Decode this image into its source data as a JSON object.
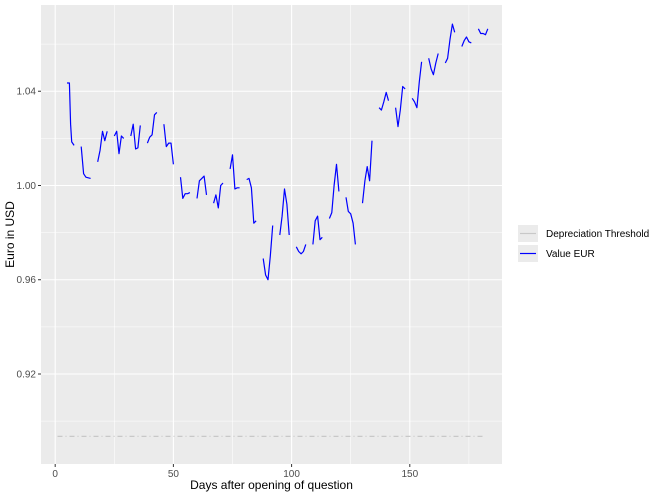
{
  "chart_data": {
    "type": "line",
    "title": "",
    "xlabel": "Days after opening of question",
    "ylabel": "Euro in USD",
    "xlim": [
      -6,
      189
    ],
    "ylim": [
      0.8818,
      1.0766
    ],
    "x_ticks": [
      0,
      50,
      100,
      150
    ],
    "y_ticks": [
      0.92,
      0.96,
      1.0,
      1.04
    ],
    "x_tick_labels": [
      "0",
      "50",
      "100",
      "150"
    ],
    "y_tick_labels": [
      "0.92",
      "0.96",
      "1.00",
      "1.04"
    ],
    "grid": true,
    "legend_position": "right",
    "legend": [
      "Depreciation Threshold",
      "Value EUR"
    ],
    "colors": {
      "panel": "#ebebeb",
      "grid": "#ffffff",
      "value": "#0000ff",
      "threshold": "#c8c8c8"
    },
    "series": [
      {
        "name": "Depreciation Threshold",
        "style": "dashed",
        "color": "#c8c8c8",
        "x": [
          1,
          182
        ],
        "y": [
          0.8935,
          0.8935
        ]
      },
      {
        "name": "Value EUR",
        "style": "solid",
        "color": "#0000ff",
        "segments": [
          [
            [
              5,
              1.0435
            ],
            [
              6,
              1.0435
            ],
            [
              6.5,
              1.026
            ],
            [
              7,
              1.0185
            ],
            [
              8,
              1.017
            ]
          ],
          [
            [
              11,
              1.0165
            ],
            [
              12,
              1.005
            ],
            [
              13,
              1.0035
            ],
            [
              15,
              1.003
            ]
          ],
          [
            [
              18,
              1.01
            ],
            [
              19,
              1.015
            ],
            [
              20,
              1.023
            ],
            [
              21,
              1.019
            ],
            [
              22,
              1.023
            ]
          ],
          [
            [
              25,
              1.021
            ],
            [
              26,
              1.023
            ],
            [
              27,
              1.0135
            ],
            [
              28,
              1.021
            ],
            [
              29,
              1.02
            ]
          ],
          [
            [
              32,
              1.021
            ],
            [
              33,
              1.026
            ],
            [
              34,
              1.0155
            ],
            [
              35,
              1.016
            ],
            [
              36,
              1.0255
            ]
          ],
          [
            [
              39,
              1.018
            ],
            [
              40,
              1.0205
            ],
            [
              41,
              1.0215
            ],
            [
              42,
              1.03
            ],
            [
              43,
              1.031
            ]
          ],
          [
            [
              46,
              1.026
            ],
            [
              47,
              1.0165
            ],
            [
              48,
              1.018
            ],
            [
              49,
              1.018
            ],
            [
              50,
              1.009
            ]
          ],
          [
            [
              53,
              1.0035
            ],
            [
              54,
              0.9945
            ],
            [
              55,
              0.9965
            ],
            [
              56,
              0.9965
            ],
            [
              57,
              0.997
            ]
          ],
          [
            [
              60,
              0.9945
            ],
            [
              61,
              1.002
            ],
            [
              62,
              1.003
            ],
            [
              63,
              1.004
            ],
            [
              64,
              0.996
            ]
          ],
          [
            [
              67,
              0.9925
            ],
            [
              68,
              0.996
            ],
            [
              69,
              0.9905
            ],
            [
              70,
              1.0
            ],
            [
              71,
              1.001
            ]
          ],
          [
            [
              74,
              1.007
            ],
            [
              75,
              1.013
            ],
            [
              76,
              0.9985
            ],
            [
              77,
              0.999
            ],
            [
              78,
              0.999
            ]
          ],
          [
            [
              81,
              1.0025
            ],
            [
              82,
              1.003
            ],
            [
              83,
              0.999
            ],
            [
              84,
              0.984
            ],
            [
              85,
              0.985
            ]
          ],
          [
            [
              88,
              0.969
            ],
            [
              89,
              0.962
            ],
            [
              90,
              0.96
            ],
            [
              91,
              0.97
            ],
            [
              92,
              0.983
            ]
          ],
          [
            [
              95,
              0.979
            ],
            [
              96,
              0.987
            ],
            [
              97,
              0.9985
            ],
            [
              98,
              0.992
            ],
            [
              99,
              0.979
            ]
          ],
          [
            [
              102,
              0.974
            ],
            [
              103,
              0.972
            ],
            [
              104,
              0.971
            ],
            [
              105,
              0.972
            ],
            [
              106,
              0.975
            ]
          ],
          [
            [
              109,
              0.975
            ],
            [
              110,
              0.985
            ],
            [
              111,
              0.987
            ],
            [
              112,
              0.977
            ],
            [
              113,
              0.978
            ]
          ],
          [
            [
              116,
              0.986
            ],
            [
              117,
              0.9885
            ],
            [
              118,
              1.0
            ],
            [
              119,
              1.009
            ],
            [
              120,
              0.9975
            ]
          ],
          [
            [
              123,
              0.995
            ],
            [
              124,
              0.989
            ],
            [
              125,
              0.988
            ],
            [
              126,
              0.984
            ],
            [
              127,
              0.975
            ]
          ],
          [
            [
              130,
              0.9925
            ],
            [
              131,
              1.002
            ],
            [
              132,
              1.008
            ],
            [
              133,
              1.002
            ],
            [
              134,
              1.019
            ]
          ],
          [
            [
              137,
              1.033
            ],
            [
              138,
              1.032
            ],
            [
              139,
              1.0355
            ],
            [
              140,
              1.0395
            ],
            [
              141,
              1.036
            ]
          ],
          [
            [
              144,
              1.033
            ],
            [
              145,
              1.025
            ],
            [
              146,
              1.032
            ],
            [
              147,
              1.042
            ],
            [
              148,
              1.041
            ]
          ],
          [
            [
              151,
              1.037
            ],
            [
              152,
              1.0355
            ],
            [
              153,
              1.033
            ],
            [
              154,
              1.044
            ],
            [
              155,
              1.0525
            ]
          ],
          [
            [
              158,
              1.054
            ],
            [
              159,
              1.0495
            ],
            [
              160,
              1.047
            ],
            [
              161,
              1.052
            ],
            [
              162,
              1.056
            ]
          ],
          [
            [
              165,
              1.052
            ],
            [
              166,
              1.054
            ],
            [
              167,
              1.062
            ],
            [
              168,
              1.0685
            ],
            [
              169,
              1.065
            ]
          ],
          [
            [
              172,
              1.059
            ],
            [
              173,
              1.0615
            ],
            [
              174,
              1.063
            ],
            [
              175,
              1.061
            ],
            [
              176,
              1.0605
            ]
          ],
          [
            [
              179,
              1.0665
            ],
            [
              180,
              1.0645
            ],
            [
              181,
              1.0645
            ],
            [
              182,
              1.064
            ],
            [
              183,
              1.0665
            ]
          ]
        ]
      }
    ]
  }
}
